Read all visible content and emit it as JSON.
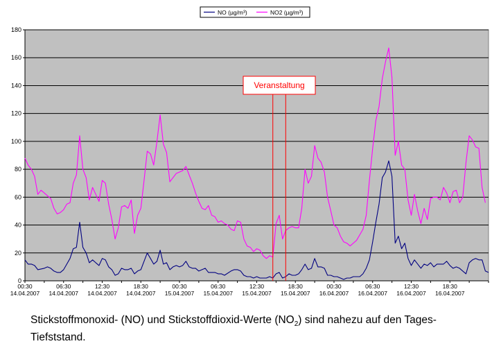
{
  "chart_data": {
    "type": "line",
    "legend_placement": "top",
    "grid": true,
    "plot_background": "#c0c0c0",
    "ylim": [
      0,
      180
    ],
    "yticks": [
      "0",
      "20",
      "40",
      "60",
      "80",
      "100",
      "120",
      "140",
      "160",
      "180"
    ],
    "x_tick_count": 12,
    "x_ticks": [
      {
        "time": "00:30",
        "date": "14.04.2007"
      },
      {
        "time": "06:30",
        "date": "14.04.2007"
      },
      {
        "time": "12:30",
        "date": "14.04.2007"
      },
      {
        "time": "18:30",
        "date": "14.04.2007"
      },
      {
        "time": "00:30",
        "date": "15.04.2007"
      },
      {
        "time": "06:30",
        "date": "15.04.2007"
      },
      {
        "time": "12:30",
        "date": "15.04.2007"
      },
      {
        "time": "18:30",
        "date": "15.04.2007"
      },
      {
        "time": "00:30",
        "date": "16.04.2007"
      },
      {
        "time": "06:30",
        "date": "16.04.2007"
      },
      {
        "time": "12:30",
        "date": "16.04.2007"
      },
      {
        "time": "18:30",
        "date": "16.04.2007"
      }
    ],
    "series": [
      {
        "name": "NO (µg/m³)",
        "color": "#000080",
        "points": [
          [
            0,
            15
          ],
          [
            0.5,
            12
          ],
          [
            1,
            12
          ],
          [
            1.5,
            11
          ],
          [
            2,
            8
          ],
          [
            3,
            9
          ],
          [
            3.5,
            10
          ],
          [
            4,
            9
          ],
          [
            4.5,
            7
          ],
          [
            5,
            6
          ],
          [
            5.5,
            6
          ],
          [
            6,
            8
          ],
          [
            6.5,
            12
          ],
          [
            7,
            16
          ],
          [
            7.5,
            23
          ],
          [
            8,
            24
          ],
          [
            8.5,
            42
          ],
          [
            9,
            24
          ],
          [
            9.5,
            20
          ],
          [
            10,
            13
          ],
          [
            10.5,
            15
          ],
          [
            11,
            13
          ],
          [
            11.5,
            11
          ],
          [
            12,
            16
          ],
          [
            12.5,
            15
          ],
          [
            13,
            10
          ],
          [
            13.5,
            8
          ],
          [
            14,
            4
          ],
          [
            14.5,
            5
          ],
          [
            15,
            9
          ],
          [
            15.5,
            8
          ],
          [
            16,
            8
          ],
          [
            16.5,
            9
          ],
          [
            17,
            5
          ],
          [
            17.5,
            7
          ],
          [
            18,
            8
          ],
          [
            18.5,
            14
          ],
          [
            19,
            20
          ],
          [
            19.5,
            16
          ],
          [
            20,
            12
          ],
          [
            20.5,
            14
          ],
          [
            21,
            22
          ],
          [
            21.5,
            12
          ],
          [
            22,
            13
          ],
          [
            22.5,
            8
          ],
          [
            23,
            10
          ],
          [
            23.5,
            11
          ],
          [
            24,
            10
          ],
          [
            24.5,
            11
          ],
          [
            25,
            14
          ],
          [
            25.5,
            10
          ],
          [
            26,
            9
          ],
          [
            26.5,
            9
          ],
          [
            27,
            7
          ],
          [
            27.5,
            8
          ],
          [
            28,
            9
          ],
          [
            28.5,
            6
          ],
          [
            29,
            6
          ],
          [
            29.5,
            6
          ],
          [
            30,
            5
          ],
          [
            30.5,
            5
          ],
          [
            31,
            4
          ],
          [
            32,
            7
          ],
          [
            32.5,
            8
          ],
          [
            33,
            8
          ],
          [
            33.5,
            7
          ],
          [
            34,
            4
          ],
          [
            34.5,
            3
          ],
          [
            35,
            3
          ],
          [
            35.5,
            2
          ],
          [
            36,
            3
          ],
          [
            36.5,
            2
          ],
          [
            37,
            2
          ],
          [
            37.5,
            2
          ],
          [
            38,
            3
          ],
          [
            38.5,
            2
          ],
          [
            39,
            5
          ],
          [
            39.5,
            6
          ],
          [
            40,
            2
          ],
          [
            40.5,
            3
          ],
          [
            41,
            5
          ],
          [
            41.5,
            4
          ],
          [
            42,
            4
          ],
          [
            42.5,
            5
          ],
          [
            43,
            8
          ],
          [
            43.5,
            12
          ],
          [
            44,
            8
          ],
          [
            44.5,
            9
          ],
          [
            45,
            16
          ],
          [
            45.5,
            10
          ],
          [
            46,
            10
          ],
          [
            46.5,
            9
          ],
          [
            47,
            4
          ],
          [
            47.5,
            4
          ],
          [
            48,
            3
          ],
          [
            48.5,
            3
          ],
          [
            49,
            2
          ],
          [
            49.5,
            1
          ],
          [
            50,
            2
          ],
          [
            50.5,
            2
          ],
          [
            51,
            3
          ],
          [
            52,
            3
          ],
          [
            52.5,
            5
          ],
          [
            53,
            9
          ],
          [
            53.5,
            15
          ],
          [
            54,
            28
          ],
          [
            54.5,
            42
          ],
          [
            55,
            55
          ],
          [
            55.5,
            74
          ],
          [
            56,
            78
          ],
          [
            56.5,
            86
          ],
          [
            57,
            75
          ],
          [
            57.5,
            27
          ],
          [
            58,
            32
          ],
          [
            58.5,
            23
          ],
          [
            59,
            27
          ],
          [
            59.5,
            16
          ],
          [
            60,
            11
          ],
          [
            60.5,
            15
          ],
          [
            61,
            12
          ],
          [
            61.5,
            9
          ],
          [
            62,
            12
          ],
          [
            62.5,
            11
          ],
          [
            63,
            13
          ],
          [
            63.5,
            10
          ],
          [
            64,
            12
          ],
          [
            64.5,
            12
          ],
          [
            65,
            12
          ],
          [
            65.5,
            14
          ],
          [
            66,
            11
          ],
          [
            66.5,
            9
          ],
          [
            67,
            10
          ],
          [
            67.5,
            9
          ],
          [
            68,
            7
          ],
          [
            68.5,
            5
          ],
          [
            69,
            13
          ],
          [
            69.5,
            15
          ],
          [
            70,
            16
          ],
          [
            70.5,
            15
          ],
          [
            71,
            15
          ],
          [
            71.5,
            7
          ],
          [
            72,
            6
          ]
        ]
      },
      {
        "name": "NO2 (µg/m³)",
        "color": "#ff00ff",
        "points": [
          [
            0,
            88
          ],
          [
            0.5,
            83
          ],
          [
            1,
            80
          ],
          [
            1.5,
            75
          ],
          [
            2,
            62
          ],
          [
            2.5,
            65
          ],
          [
            3,
            63
          ],
          [
            3.5,
            61
          ],
          [
            4,
            59
          ],
          [
            4.5,
            52
          ],
          [
            5,
            48
          ],
          [
            5.5,
            49
          ],
          [
            6,
            51
          ],
          [
            6.5,
            55
          ],
          [
            7,
            56
          ],
          [
            7.5,
            70
          ],
          [
            8,
            76
          ],
          [
            8.5,
            104
          ],
          [
            9,
            80
          ],
          [
            9.5,
            74
          ],
          [
            10,
            58
          ],
          [
            10.5,
            67
          ],
          [
            11,
            62
          ],
          [
            11.5,
            57
          ],
          [
            12,
            72
          ],
          [
            12.5,
            70
          ],
          [
            13,
            55
          ],
          [
            13.5,
            44
          ],
          [
            14,
            30
          ],
          [
            14.5,
            38
          ],
          [
            15,
            53
          ],
          [
            15.5,
            54
          ],
          [
            16,
            52
          ],
          [
            16.5,
            58
          ],
          [
            17,
            34
          ],
          [
            17.5,
            47
          ],
          [
            18,
            52
          ],
          [
            18.5,
            72
          ],
          [
            19,
            93
          ],
          [
            19.5,
            91
          ],
          [
            20,
            83
          ],
          [
            20.5,
            100
          ],
          [
            21,
            119
          ],
          [
            21.5,
            98
          ],
          [
            22,
            92
          ],
          [
            22.5,
            71
          ],
          [
            23,
            74
          ],
          [
            23.5,
            77
          ],
          [
            24,
            78
          ],
          [
            24.5,
            79
          ],
          [
            25,
            82
          ],
          [
            25.5,
            76
          ],
          [
            26,
            70
          ],
          [
            26.5,
            63
          ],
          [
            27,
            57
          ],
          [
            27.5,
            52
          ],
          [
            28,
            51
          ],
          [
            28.5,
            54
          ],
          [
            29,
            47
          ],
          [
            29.5,
            46
          ],
          [
            30,
            42
          ],
          [
            30.5,
            43
          ],
          [
            31,
            41
          ],
          [
            31.5,
            40
          ],
          [
            32,
            37
          ],
          [
            32.5,
            36
          ],
          [
            33,
            43
          ],
          [
            33.5,
            42
          ],
          [
            34,
            30
          ],
          [
            34.5,
            25
          ],
          [
            35,
            24
          ],
          [
            35.5,
            21
          ],
          [
            36,
            23
          ],
          [
            36.5,
            22
          ],
          [
            37,
            18
          ],
          [
            37.5,
            16
          ],
          [
            38,
            18
          ],
          [
            38.5,
            17
          ],
          [
            39,
            41
          ],
          [
            39.5,
            47
          ],
          [
            40,
            30
          ],
          [
            40.5,
            36
          ],
          [
            41,
            38
          ],
          [
            41.5,
            39
          ],
          [
            42,
            38
          ],
          [
            42.5,
            38
          ],
          [
            43,
            52
          ],
          [
            43.5,
            80
          ],
          [
            44,
            70
          ],
          [
            44.5,
            75
          ],
          [
            45,
            97
          ],
          [
            45.5,
            88
          ],
          [
            46,
            85
          ],
          [
            46.5,
            78
          ],
          [
            47,
            60
          ],
          [
            47.5,
            50
          ],
          [
            48,
            40
          ],
          [
            48.5,
            38
          ],
          [
            49,
            32
          ],
          [
            49.5,
            28
          ],
          [
            50,
            27
          ],
          [
            50.5,
            25
          ],
          [
            51,
            27
          ],
          [
            51.5,
            29
          ],
          [
            52,
            33
          ],
          [
            52.5,
            37
          ],
          [
            53,
            47
          ],
          [
            53.5,
            72
          ],
          [
            54,
            95
          ],
          [
            54.5,
            115
          ],
          [
            55,
            125
          ],
          [
            55.5,
            145
          ],
          [
            56,
            157
          ],
          [
            56.5,
            167
          ],
          [
            57,
            146
          ],
          [
            57.5,
            90
          ],
          [
            58,
            100
          ],
          [
            58.5,
            83
          ],
          [
            59,
            80
          ],
          [
            59.5,
            58
          ],
          [
            60,
            47
          ],
          [
            60.5,
            62
          ],
          [
            61,
            50
          ],
          [
            61.5,
            41
          ],
          [
            62,
            52
          ],
          [
            62.5,
            44
          ],
          [
            63,
            59
          ],
          [
            63.5,
            60
          ],
          [
            64,
            60
          ],
          [
            64.5,
            58
          ],
          [
            65,
            67
          ],
          [
            65.5,
            63
          ],
          [
            66,
            56
          ],
          [
            66.5,
            64
          ],
          [
            67,
            65
          ],
          [
            67.5,
            56
          ],
          [
            68,
            60
          ],
          [
            68.5,
            85
          ],
          [
            69,
            104
          ],
          [
            69.5,
            101
          ],
          [
            70,
            96
          ],
          [
            70.5,
            95
          ],
          [
            71,
            67
          ],
          [
            71.5,
            56
          ]
        ]
      }
    ],
    "annotation": {
      "label": "Veranstaltung",
      "x_range": [
        38.5,
        40.5
      ],
      "color": "#ff0000"
    }
  },
  "caption": {
    "text_before": "Stickstoffmonoxid- (NO) und Stickstoffdioxid-Werte (NO",
    "subscript": "2",
    "text_after": ") sind nahezu auf den Tages-Tiefststand."
  }
}
